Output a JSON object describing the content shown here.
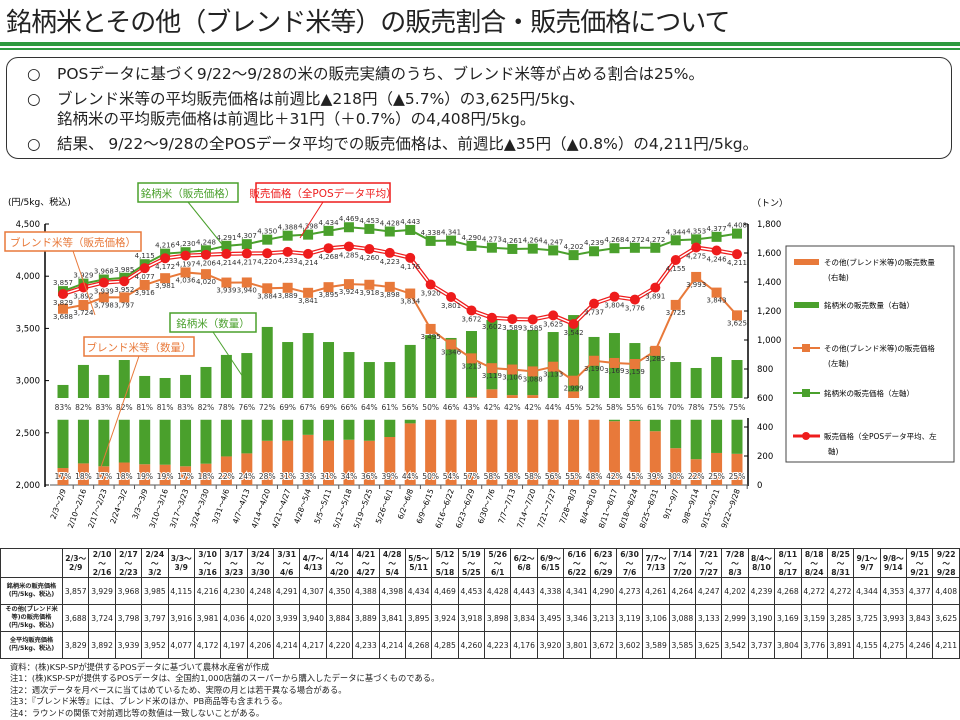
{
  "title": "銘柄米とその他（ブレンド米等）の販売割合・販売価格について",
  "summary": {
    "bullet": "○",
    "line1": "POSデータに基づく9/22～9/28の米の販売実績のうち、ブレンド米等が占める割合は25%。",
    "line2a": "ブレンド米等の平均販売価格は前週比▲218円（▲5.7%）の3,625円/5kg、",
    "line2b": "銘柄米の平均販売価格は前週比＋31円（＋0.7%）の4,408円/5kg。",
    "line3": "結果、 9/22～9/28の全POSデータ平均での販売価格は、前週比▲35円（▲0.8%）の4,211円/5kg。"
  },
  "chart_data": {
    "type": "bar+line",
    "left_axis": {
      "label": "(円/5kg、税込)",
      "range": [
        2000,
        4500
      ],
      "ticks": [
        "2,000",
        "2,500",
        "3,000",
        "3,500",
        "4,000",
        "4,500"
      ]
    },
    "right_axis": {
      "label": "（トン）",
      "broken": true,
      "range": [
        0,
        1800
      ],
      "ticks": [
        "0",
        "200",
        "400",
        "600",
        "800",
        "1,000",
        "1,200",
        "1,400",
        "1,600",
        "1,800"
      ]
    },
    "weeks": [
      "2/3～2/9",
      "2/10～2/16",
      "2/17～2/23",
      "2/24～3/2",
      "3/3～3/9",
      "3/10～3/16",
      "3/17～3/23",
      "3/24～3/30",
      "3/31～4/6",
      "4/7～4/13",
      "4/14～4/20",
      "4/21～4/27",
      "4/28～5/4",
      "5/5～5/11",
      "5/12～5/18",
      "5/19～5/25",
      "5/26～6/1",
      "6/2～6/8",
      "6/9～6/15",
      "6/16～6/22",
      "6/23～6/29",
      "6/30～7/6",
      "7/7～7/13",
      "7/14～7/20",
      "7/21～7/27",
      "7/28～8/3",
      "8/4～8/10",
      "8/11～8/17",
      "8/18～8/24",
      "8/25～8/31",
      "9/1～9/7",
      "9/8～9/14",
      "9/15～9/21",
      "9/22～9/28"
    ],
    "series": [
      {
        "name": "その他(ブレンド米等)の販売数量（右軸）",
        "kind": "bar",
        "color": "#e8793a",
        "values": [
          117,
          149,
          129,
          155,
          143,
          140,
          129,
          147,
          197,
          218,
          305,
          306,
          346,
          306,
          312,
          305,
          331,
          425,
          517,
          548,
          605,
          660,
          620,
          620,
          591,
          645,
          490,
          440,
          441,
          371,
          254,
          178,
          221,
          215
        ],
        "share_labels": [
          "17%",
          "18%",
          "17%",
          "18%",
          "19%",
          "19%",
          "17%",
          "18%",
          "22%",
          "24%",
          "28%",
          "31%",
          "33%",
          "31%",
          "34%",
          "36%",
          "39%",
          "44%",
          "50%",
          "54%",
          "57%",
          "58%",
          "58%",
          "58%",
          "56%",
          "55%",
          "48%",
          "42%",
          "45%",
          "39%",
          "30%",
          "22%",
          "25%",
          "25%"
        ]
      },
      {
        "name": "銘柄米の販売数量（右軸）",
        "kind": "bar",
        "color": "#4aa02c",
        "values": [
          573,
          679,
          630,
          707,
          609,
          598,
          630,
          667,
          700,
          692,
          785,
          680,
          702,
          680,
          605,
          543,
          517,
          541,
          517,
          466,
          457,
          478,
          449,
          449,
          464,
          527,
          531,
          608,
          538,
          581,
          594,
          629,
          662,
          647
        ],
        "share_labels": [
          "83%",
          "82%",
          "83%",
          "82%",
          "81%",
          "81%",
          "83%",
          "82%",
          "78%",
          "76%",
          "72%",
          "69%",
          "67%",
          "69%",
          "66%",
          "64%",
          "61%",
          "56%",
          "50%",
          "46%",
          "43%",
          "42%",
          "42%",
          "42%",
          "44%",
          "45%",
          "52%",
          "58%",
          "55%",
          "61%",
          "70%",
          "78%",
          "75%",
          "75%"
        ]
      },
      {
        "name": "その他(ブレンド米等)の販売価格（左軸）",
        "kind": "line",
        "marker": "square",
        "color": "#e8793a",
        "values": [
          3688,
          3724,
          3798,
          3797,
          3916,
          3981,
          4036,
          4020,
          3939,
          3940,
          3884,
          3889,
          3841,
          3895,
          3924,
          3918,
          3898,
          3834,
          3495,
          3346,
          3213,
          3119,
          3106,
          3088,
          3133,
          2999,
          3190,
          3169,
          3159,
          3285,
          3725,
          3993,
          3843,
          3625
        ]
      },
      {
        "name": "銘柄米の販売価格（左軸）",
        "kind": "line",
        "marker": "square",
        "color": "#4aa02c",
        "values": [
          3857,
          3929,
          3968,
          3985,
          4115,
          4216,
          4230,
          4248,
          4291,
          4307,
          4350,
          4388,
          4398,
          4434,
          4469,
          4453,
          4428,
          4443,
          4338,
          4341,
          4290,
          4273,
          4261,
          4264,
          4247,
          4202,
          4239,
          4268,
          4272,
          4272,
          4344,
          4353,
          4377,
          4408
        ]
      },
      {
        "name": "販売価格（全POSデータ平均、左軸）",
        "kind": "line",
        "marker": "circle",
        "color": "#ee1c1c",
        "values": [
          3829,
          3892,
          3939,
          3952,
          4077,
          4172,
          4197,
          4206,
          4214,
          4217,
          4220,
          4233,
          4214,
          4268,
          4285,
          4260,
          4223,
          4176,
          3920,
          3801,
          3672,
          3602,
          3589,
          3585,
          3625,
          3542,
          3737,
          3804,
          3776,
          3891,
          4155,
          4275,
          4246,
          4211
        ]
      }
    ],
    "annotations": {
      "brand_price": "銘柄米（販売価格）",
      "avg_price": "販売価格（全POSデータ平均）",
      "blend_price": "ブレンド米等（販売価格）",
      "brand_qty": "銘柄米（数量）",
      "blend_qty": "ブレンド米等（数量）"
    },
    "legend": {
      "placement": "right",
      "items": [
        [
          "その他(ブレンド米等)の販売数量",
          "(右軸)"
        ],
        [
          "銘柄米の販売数量（右軸）"
        ],
        [
          "その他(ブレンド米等)の販売価格",
          "(左軸)"
        ],
        [
          "銘柄米の販売価格（左軸）"
        ],
        [
          "販売価格（全POSデータ平均、左",
          "軸)"
        ]
      ]
    }
  },
  "table": {
    "headers": [
      [
        "2/3～",
        "2/9"
      ],
      [
        "2/10～",
        "2/16"
      ],
      [
        "2/17～",
        "2/23"
      ],
      [
        "2/24～",
        "3/2"
      ],
      [
        "3/3～",
        "3/9"
      ],
      [
        "3/10～",
        "3/16"
      ],
      [
        "3/17～",
        "3/23"
      ],
      [
        "3/24～",
        "3/30"
      ],
      [
        "3/31～",
        "4/6"
      ],
      [
        "4/7～",
        "4/13"
      ],
      [
        "4/14～",
        "4/20"
      ],
      [
        "4/21～",
        "4/27"
      ],
      [
        "4/28～",
        "5/4"
      ],
      [
        "5/5～",
        "5/11"
      ],
      [
        "5/12～",
        "5/18"
      ],
      [
        "5/19～",
        "5/25"
      ],
      [
        "5/26～",
        "6/1"
      ],
      [
        "6/2～",
        "6/8"
      ],
      [
        "6/9～",
        "6/15"
      ],
      [
        "6/16～",
        "6/22"
      ],
      [
        "6/23～",
        "6/29"
      ],
      [
        "6/30～",
        "7/6"
      ],
      [
        "7/7～",
        "7/13"
      ],
      [
        "7/14～",
        "7/20"
      ],
      [
        "7/21～",
        "7/27"
      ],
      [
        "7/28～",
        "8/3"
      ],
      [
        "8/4～",
        "8/10"
      ],
      [
        "8/11～",
        "8/17"
      ],
      [
        "8/18～",
        "8/24"
      ],
      [
        "8/25～",
        "8/31"
      ],
      [
        "9/1～",
        "9/7"
      ],
      [
        "9/8～",
        "9/14"
      ],
      [
        "9/15～",
        "9/21"
      ],
      [
        "9/22～",
        "9/28"
      ]
    ],
    "rows": [
      {
        "label": [
          "銘柄米の販売価格",
          "(円/5kg、税込)"
        ],
        "cells": [
          "3,857",
          "3,929",
          "3,968",
          "3,985",
          "4,115",
          "4,216",
          "4,230",
          "4,248",
          "4,291",
          "4,307",
          "4,350",
          "4,388",
          "4,398",
          "4,434",
          "4,469",
          "4,453",
          "4,428",
          "4,443",
          "4,338",
          "4,341",
          "4,290",
          "4,273",
          "4,261",
          "4,264",
          "4,247",
          "4,202",
          "4,239",
          "4,268",
          "4,272",
          "4,272",
          "4,344",
          "4,353",
          "4,377",
          "4,408"
        ]
      },
      {
        "label": [
          "その他(ブレンド米",
          "等)の販売価格",
          "(円/5kg、税込)"
        ],
        "cells": [
          "3,688",
          "3,724",
          "3,798",
          "3,797",
          "3,916",
          "3,981",
          "4,036",
          "4,020",
          "3,939",
          "3,940",
          "3,884",
          "3,889",
          "3,841",
          "3,895",
          "3,924",
          "3,918",
          "3,898",
          "3,834",
          "3,495",
          "3,346",
          "3,213",
          "3,119",
          "3,106",
          "3,088",
          "3,133",
          "2,999",
          "3,190",
          "3,169",
          "3,159",
          "3,285",
          "3,725",
          "3,993",
          "3,843",
          "3,625"
        ]
      },
      {
        "label": [
          "全平均販売価格",
          "(円/5kg、税込)"
        ],
        "cells": [
          "3,829",
          "3,892",
          "3,939",
          "3,952",
          "4,077",
          "4,172",
          "4,197",
          "4,206",
          "4,214",
          "4,217",
          "4,220",
          "4,233",
          "4,214",
          "4,268",
          "4,285",
          "4,260",
          "4,223",
          "4,176",
          "3,920",
          "3,801",
          "3,672",
          "3,602",
          "3,589",
          "3,585",
          "3,625",
          "3,542",
          "3,737",
          "3,804",
          "3,776",
          "3,891",
          "4,155",
          "4,275",
          "4,246",
          "4,211"
        ]
      }
    ]
  },
  "notes": [
    "資料：(株)KSP-SPが提供するPOSデータに基づいて農林水産省が作成",
    "注1：(株)KSP-SPが提供するPOSデータは、全国約1,000店舗のスーパーから購入したデータに基づくものである。",
    "注2：週次データを月ベースに当てはめているため、実際の月とは若干異なる場合がある。",
    "注3：『ブレンド米等』には、ブレンド米のほか、PB商品等も含まれうる。",
    "注4：ラウンドの関係で対前週比等の数値は一致しないことがある。"
  ]
}
